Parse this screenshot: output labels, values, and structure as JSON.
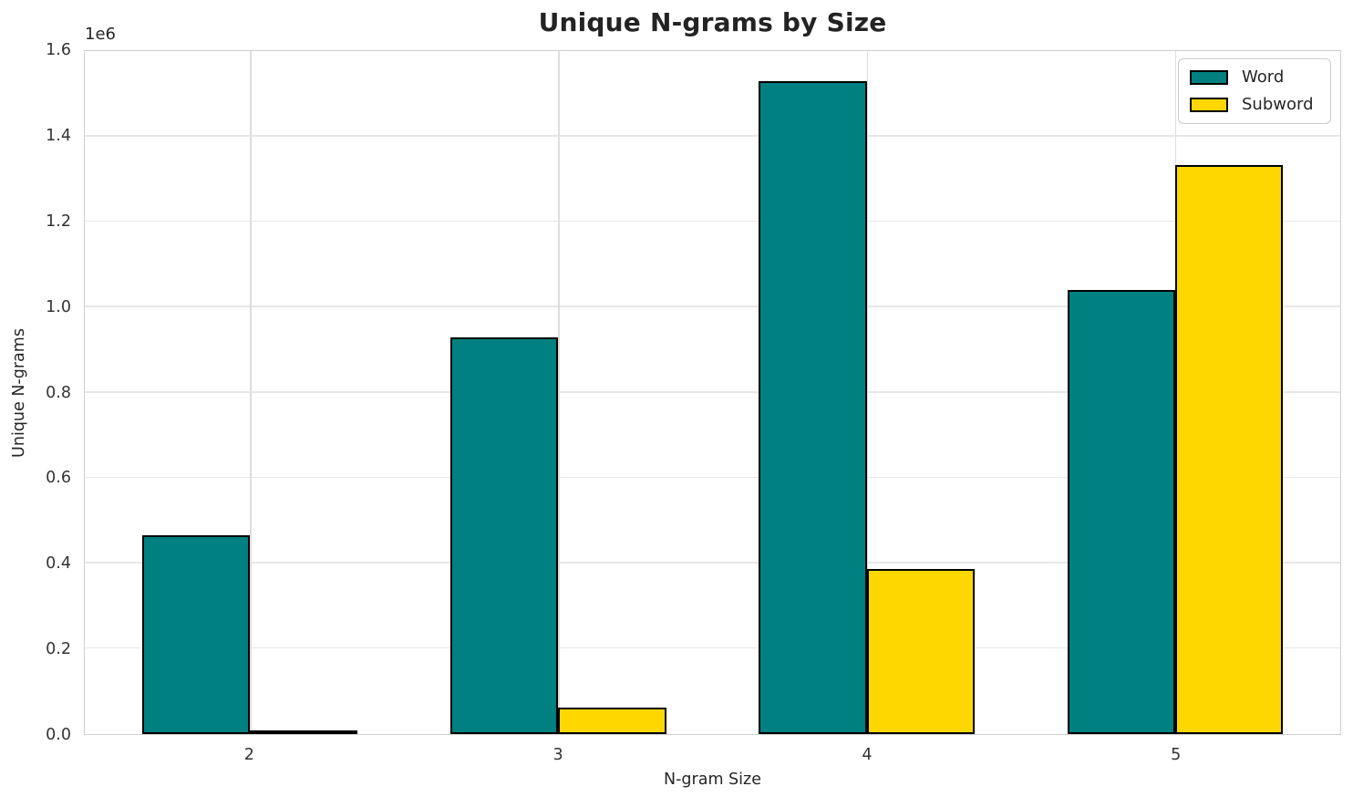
{
  "chart_data": {
    "type": "bar",
    "title": "Unique N-grams by Size",
    "xlabel": "N-gram Size",
    "ylabel": "Unique N-grams",
    "y_offset_label": "1e6",
    "categories": [
      "2",
      "3",
      "4",
      "5"
    ],
    "series": [
      {
        "name": "Word",
        "color": "#008080",
        "values": [
          465000,
          930000,
          1530000,
          1040000
        ]
      },
      {
        "name": "Subword",
        "color": "#FFD700",
        "values": [
          9000,
          62000,
          386000,
          1333000
        ]
      }
    ],
    "bar_edge_color": "#000000",
    "bar_width_data_units": 0.35,
    "xlim": [
      1.465,
      5.535
    ],
    "ylim": [
      0,
      1600000
    ],
    "yticks": [
      "0.0",
      "0.2",
      "0.4",
      "0.6",
      "0.8",
      "1.0",
      "1.2",
      "1.4",
      "1.6"
    ],
    "grid": true,
    "legend_position": "upper right"
  }
}
